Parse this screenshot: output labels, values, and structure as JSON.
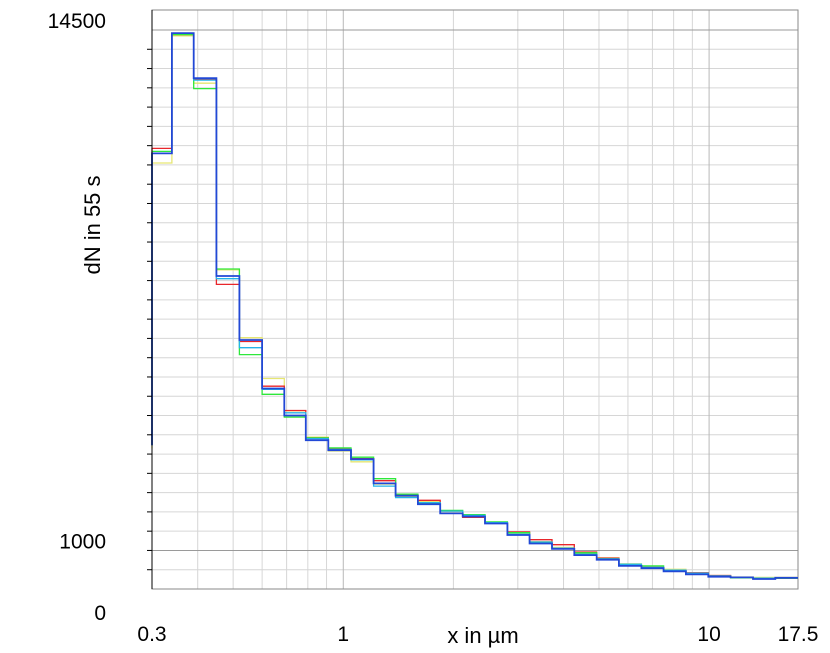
{
  "chart_data": {
    "type": "line",
    "subtype": "step histogram",
    "xlabel": "x in µm",
    "ylabel": "dN in 55 s",
    "x_scale": "log",
    "xlim": [
      0.3,
      17.5
    ],
    "ylim": [
      0,
      14500
    ],
    "x_ticks": [
      {
        "value": 0.3,
        "label": "0.3"
      },
      {
        "value": 1,
        "label": "1"
      },
      {
        "value": 10,
        "label": "10"
      },
      {
        "value": 17.5,
        "label": "17.5"
      }
    ],
    "y_ticks": [
      {
        "value": 0,
        "label": "0"
      },
      {
        "value": 1000,
        "label": "1000"
      },
      {
        "value": 14500,
        "label": "14500"
      }
    ],
    "grid": true,
    "legend": "none",
    "bin_edges": [
      0.3,
      0.34,
      0.39,
      0.45,
      0.52,
      0.6,
      0.69,
      0.79,
      0.91,
      1.05,
      1.21,
      1.39,
      1.6,
      1.84,
      2.12,
      2.44,
      2.81,
      3.23,
      3.72,
      4.28,
      4.93,
      5.67,
      6.53,
      7.51,
      8.64,
      9.95,
      11.45,
      13.18,
      15.17,
      17.5
    ],
    "series": [
      {
        "color": "#e6e672",
        "values": [
          11050,
          14350,
          13120,
          8280,
          6520,
          5460,
          4620,
          3940,
          3580,
          3300,
          2720,
          2380,
          2270,
          2010,
          1920,
          1720,
          1430,
          1230,
          1080,
          920,
          810,
          650,
          560,
          510,
          420,
          350,
          310,
          300,
          300
        ]
      },
      {
        "color": "#e8262b",
        "values": [
          11430,
          14380,
          13220,
          7900,
          6420,
          5260,
          4630,
          3920,
          3640,
          3380,
          2810,
          2430,
          2300,
          1960,
          1860,
          1730,
          1480,
          1280,
          1150,
          960,
          800,
          620,
          560,
          490,
          420,
          350,
          300,
          280,
          280
        ]
      },
      {
        "color": "#2ee83b",
        "values": [
          11350,
          14380,
          12980,
          8300,
          6080,
          5050,
          4460,
          3920,
          3660,
          3420,
          2860,
          2460,
          2230,
          2040,
          1930,
          1740,
          1460,
          1200,
          1060,
          940,
          780,
          640,
          600,
          480,
          400,
          330,
          290,
          270,
          280
        ]
      },
      {
        "color": "#24b3e8",
        "values": [
          11300,
          14420,
          13200,
          8050,
          6260,
          5180,
          4570,
          3900,
          3620,
          3350,
          2670,
          2370,
          2240,
          2020,
          1910,
          1720,
          1420,
          1220,
          1060,
          900,
          780,
          640,
          560,
          490,
          410,
          340,
          300,
          280,
          290
        ]
      },
      {
        "color": "#2248d6",
        "values": [
          11300,
          14420,
          13250,
          8120,
          6460,
          5200,
          4500,
          3860,
          3600,
          3370,
          2740,
          2420,
          2200,
          1960,
          1880,
          1700,
          1400,
          1180,
          1040,
          880,
          760,
          600,
          540,
          460,
          380,
          320,
          300,
          260,
          290
        ]
      }
    ]
  }
}
